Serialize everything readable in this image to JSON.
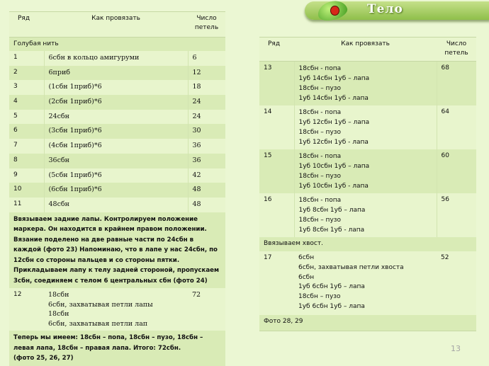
{
  "banner": {
    "title": "Тело"
  },
  "headers": {
    "row": "Ряд",
    "how": "Как провязать",
    "count": "Число\nпетель"
  },
  "left_table": {
    "section_blue": "Голубая нить",
    "rows": [
      {
        "row": "1",
        "how": "6сбн в кольцо амигуруми",
        "count": "6"
      },
      {
        "row": "2",
        "how": "6приб",
        "count": "12"
      },
      {
        "row": "3",
        "how": "(1сбн 1приб)*6",
        "count": "18"
      },
      {
        "row": "4",
        "how": "(2сбн 1приб)*6",
        "count": "24"
      },
      {
        "row": "5",
        "how": "24сбн",
        "count": "24"
      },
      {
        "row": "6",
        "how": "(3сбн 1приб)*6",
        "count": "30"
      },
      {
        "row": "7",
        "how": "(4сбн 1приб)*6",
        "count": "36"
      },
      {
        "row": "8",
        "how": "36сбн",
        "count": "36"
      },
      {
        "row": "9",
        "how": "(5сбн 1приб)*6",
        "count": "42"
      },
      {
        "row": "10",
        "how": "(6сбн 1приб)*6",
        "count": "48"
      },
      {
        "row": "11",
        "how": "48сбн",
        "count": "48"
      }
    ],
    "note_legs": "Ввязываем задние лапы. Контролируем положение маркера. Он находится в крайнем правом положении. Вязание поделено на две равные части по 24сбн в каждой (фото 23) Напоминаю, что в лапе у нас 24сбн, по 12сбн со стороны пальцев и со стороны пятки. Прикладываем лапу к телу задней стороной, пропускаем 3сбн, соединяем с телом 6 центральных сбн (фото 24)",
    "row12": {
      "row": "12",
      "how": "18сбн\n6сбн, захватывая петли лапы\n18сбн\n6сбн, захватывая петли лап",
      "count": "72"
    },
    "note_total": "Теперь мы имеем: 18сбн – попа, 18сбн – пузо, 18сбн – левая лапа, 18сбн – правая лапа. Итого: 72сбн.\n (фото 25, 26, 27)"
  },
  "right_table": {
    "rows_a": [
      {
        "row": "13",
        "how": "18сбн - попа\n1уб 14сбн 1уб – лапа\n18сбн – пузо\n1уб 14сбн 1уб - лапа",
        "count": "68"
      },
      {
        "row": "14",
        "how": "18сбн - попа\n1уб 12сбн 1уб – лапа\n18сбн – пузо\n1уб 12сбн 1уб - лапа",
        "count": "64"
      },
      {
        "row": "15",
        "how": "18сбн - попа\n1уб 10сбн 1уб – лапа\n18сбн – пузо\n1уб 10сбн 1уб - лапа",
        "count": "60"
      },
      {
        "row": "16",
        "how": "18сбн - попа\n1уб 8сбн 1уб – лапа\n18сбн – пузо\n1уб 8сбн 1уб - лапа",
        "count": "56"
      }
    ],
    "note_tail": "Ввязываем хвост.",
    "row17": {
      "row": "17",
      "how": "6сбн\n6сбн, захватывая петли хвоста\n6сбн\n1уб 6сбн 1уб – лапа\n18сбн – пузо\n1уб 6сбн 1уб – лапа",
      "count": "52"
    },
    "note_photo": "Фото  28, 29"
  },
  "page_number": "13"
}
